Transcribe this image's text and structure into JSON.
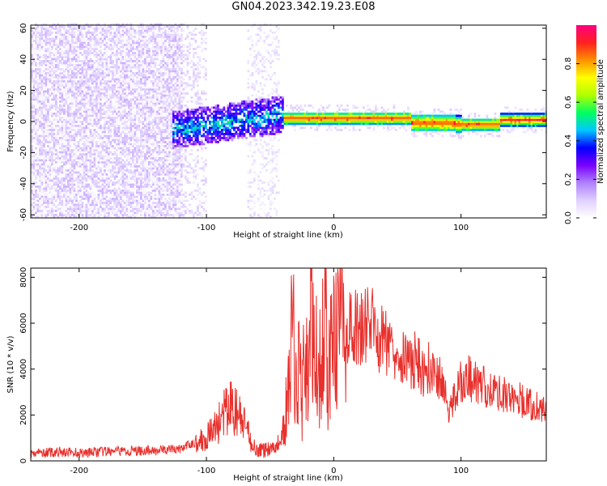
{
  "figure": {
    "title": "GN04.2023.342.19.23.E08"
  },
  "chart_data": [
    {
      "type": "heatmap",
      "xlabel": "Height of straight line (km)",
      "ylabel": "Frequency (Hz)",
      "xlim": [
        -238,
        167
      ],
      "ylim": [
        -62,
        62
      ],
      "xticks": [
        -200,
        -100,
        0,
        100
      ],
      "yticks": [
        60,
        40,
        20,
        0,
        -20,
        -40,
        -60
      ],
      "grid": false,
      "colorbar": {
        "label": "Normalized spectral amplitude",
        "ticks": [
          0.0,
          0.2,
          0.4,
          0.6,
          0.8
        ],
        "range": [
          0,
          1
        ],
        "colormap": [
          "#ffffff",
          "#e0d0ff",
          "#b080ff",
          "#7a00ff",
          "#0000ff",
          "#00c8ff",
          "#00ff60",
          "#b0ff00",
          "#ffff00",
          "#ff9000",
          "#ff2020",
          "#ff0080"
        ]
      },
      "regions": [
        {
          "name": "noise",
          "x": [
            -238,
            -120
          ],
          "freq": [
            -62,
            62
          ],
          "level": 0.06
        },
        {
          "name": "noise-fading",
          "x": [
            -120,
            -100
          ],
          "freq": [
            -62,
            62
          ],
          "level": 0.03
        },
        {
          "name": "noise-band",
          "x": [
            -68,
            -44
          ],
          "freq": [
            -62,
            62
          ],
          "level": 0.03
        },
        {
          "name": "signal-onset",
          "x": [
            -128,
            -40
          ],
          "freq": [
            -18,
            12
          ],
          "level": 0.25
        },
        {
          "name": "signal-core",
          "x": [
            -110,
            -40
          ],
          "freq": [
            -10,
            8
          ],
          "level": 0.35
        },
        {
          "name": "narrow-line",
          "x": [
            -40,
            167
          ],
          "freq": [
            -4,
            4
          ],
          "level": 0.85
        }
      ]
    },
    {
      "type": "line",
      "xlabel": "Height of straight line (km)",
      "ylabel": "SNR (10 * v/v)",
      "xlim": [
        -238,
        167
      ],
      "ylim": [
        0,
        8400
      ],
      "xticks": [
        -200,
        -100,
        0,
        100
      ],
      "yticks": [
        0,
        2000,
        4000,
        6000,
        8000
      ],
      "grid": false,
      "series": [
        {
          "color": "#e8302c",
          "x": [
            -238,
            -220,
            -200,
            -180,
            -160,
            -140,
            -120,
            -110,
            -100,
            -95,
            -90,
            -85,
            -80,
            -75,
            -70,
            -65,
            -60,
            -55,
            -50,
            -45,
            -40,
            -37,
            -35,
            -32,
            -30,
            -27,
            -25,
            -22,
            -20,
            -17,
            -15,
            -12,
            -10,
            -7,
            -5,
            -2,
            0,
            3,
            5,
            8,
            10,
            15,
            20,
            25,
            30,
            35,
            40,
            45,
            50,
            55,
            60,
            65,
            70,
            75,
            80,
            85,
            90,
            95,
            100,
            105,
            110,
            115,
            120,
            125,
            130,
            135,
            140,
            145,
            150,
            155,
            160,
            167
          ],
          "y": [
            350,
            400,
            380,
            420,
            450,
            480,
            550,
            800,
            1100,
            1400,
            1800,
            2200,
            2500,
            2100,
            1600,
            900,
            500,
            500,
            600,
            700,
            1200,
            2500,
            3500,
            6500,
            3000,
            5500,
            2500,
            6000,
            3500,
            7000,
            4000,
            5500,
            3800,
            6800,
            4500,
            5000,
            5200,
            5600,
            8400,
            5600,
            5800,
            6000,
            5900,
            6100,
            6200,
            5500,
            5400,
            5300,
            5000,
            4800,
            4200,
            4700,
            3800,
            4300,
            3500,
            3900,
            2000,
            3000,
            3500,
            3700,
            3600,
            3400,
            3300,
            3200,
            3100,
            3000,
            2900,
            2800,
            2600,
            2500,
            2400,
            2200
          ]
        }
      ]
    }
  ]
}
